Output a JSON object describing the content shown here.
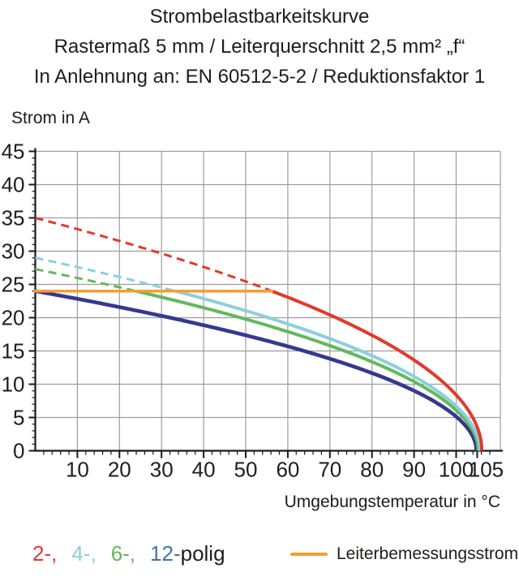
{
  "title": {
    "line1": "Strombelastbarkeitskurve",
    "line2": "Rastermaß 5 mm / Leiterquerschnitt 2,5 mm² „f“",
    "line3": "In Anlehnung an: EN 60512-5-2 / Reduktionsfaktor 1"
  },
  "chart_data": {
    "type": "line",
    "title": "Strombelastbarkeitskurve",
    "xlabel": "Umgebungstemperatur in °C",
    "ylabel": "Strom in A",
    "xlim": [
      0,
      110.5
    ],
    "ylim": [
      0,
      45
    ],
    "x_major_ticks": [
      10,
      20,
      30,
      40,
      50,
      60,
      70,
      80,
      90,
      100,
      105
    ],
    "x_minor_step": 2,
    "y_major_ticks": [
      0,
      5,
      10,
      15,
      20,
      25,
      30,
      35,
      40,
      45
    ],
    "y_minor_step": 1,
    "grid": true,
    "derating_end_temp": 105.5,
    "curve_model": "I(T) = I0 · sqrt(1 - T / 105.5), dashed where I > rated 24 A",
    "rated_line": {
      "label": "Leiterbemessungsstrom",
      "value_A": 24,
      "color": "#f59e31"
    },
    "x": [
      0,
      10,
      20,
      30,
      40,
      50,
      60,
      70,
      80,
      90,
      100,
      105
    ],
    "series": [
      {
        "name": "2-polig",
        "color": "#e2392b",
        "i0": 35,
        "values": [
          35.0,
          33.3,
          31.5,
          29.6,
          27.6,
          25.4,
          23.0,
          20.3,
          17.2,
          13.4,
          8.0,
          2.4
        ]
      },
      {
        "name": "4-polig",
        "color": "#8ccfdb",
        "i0": 29,
        "values": [
          29.0,
          27.6,
          26.1,
          24.5,
          22.9,
          21.0,
          19.0,
          16.8,
          14.3,
          11.1,
          6.6,
          2.0
        ]
      },
      {
        "name": "6-polig",
        "color": "#62b95c",
        "i0": 27.3,
        "values": [
          27.3,
          26.0,
          24.6,
          23.1,
          21.5,
          19.8,
          17.9,
          15.8,
          13.4,
          10.5,
          6.2,
          1.9
        ]
      },
      {
        "name": "12-polig",
        "color": "#36388f",
        "i0": 24,
        "values": [
          24.0,
          22.8,
          21.6,
          20.3,
          18.9,
          17.4,
          15.8,
          13.9,
          11.8,
          9.2,
          5.5,
          1.7
        ]
      }
    ],
    "legend_position": "bottom"
  },
  "legend": {
    "pole_items": [
      {
        "label": "2-,",
        "color": "#e2392b"
      },
      {
        "label": "4-,",
        "color": "#8ccfdb"
      },
      {
        "label": "6-,",
        "color": "#62b95c"
      },
      {
        "label": "12-",
        "color": "#4371ad"
      }
    ],
    "suffix": "polig",
    "rated": {
      "label": "Leiterbemessungsstrom",
      "color": "#f59e31"
    }
  },
  "colors": {
    "grid": "#9d9d9d",
    "axis": "#1a1a1a",
    "text": "#1d1d1b"
  }
}
